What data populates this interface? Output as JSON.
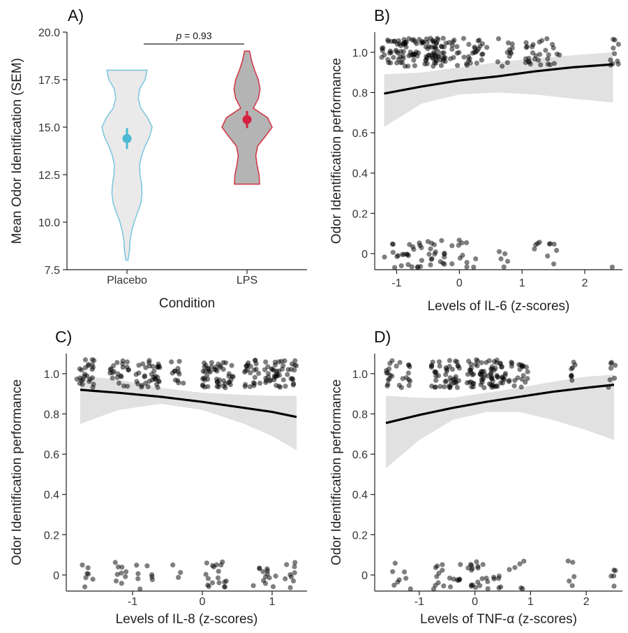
{
  "chart_data": [
    {
      "panel": "A)",
      "type": "violin",
      "xlabel": "Condition",
      "ylabel": "Mean Odor Identification (SEM)",
      "categories": [
        "Placebo",
        "LPS"
      ],
      "ylim": [
        7.5,
        20.0
      ],
      "yticks": [
        "7.5",
        "10.0",
        "12.5",
        "15.0",
        "17.5",
        "20.0"
      ],
      "yticks_values": [
        7.5,
        10.0,
        12.5,
        15.0,
        17.5,
        20.0
      ],
      "violins": [
        {
          "category": "Placebo",
          "fill": "#eaeaea",
          "stroke": "#7ec8e0",
          "profile": [
            [
              8.0,
              0.04
            ],
            [
              8.5,
              0.1
            ],
            [
              9.0,
              0.12
            ],
            [
              9.5,
              0.18
            ],
            [
              10.0,
              0.28
            ],
            [
              10.5,
              0.42
            ],
            [
              11.0,
              0.55
            ],
            [
              11.5,
              0.6
            ],
            [
              12.0,
              0.58
            ],
            [
              12.5,
              0.52
            ],
            [
              13.0,
              0.5
            ],
            [
              13.5,
              0.58
            ],
            [
              14.0,
              0.72
            ],
            [
              14.5,
              0.9
            ],
            [
              15.0,
              1.0
            ],
            [
              15.5,
              0.82
            ],
            [
              16.0,
              0.55
            ],
            [
              16.5,
              0.45
            ],
            [
              17.0,
              0.5
            ],
            [
              17.5,
              0.72
            ],
            [
              18.0,
              0.8
            ]
          ],
          "mean": 14.4,
          "sem_low": 13.85,
          "sem_high": 14.95,
          "point_color": "#4bbad2"
        },
        {
          "category": "LPS",
          "fill": "#b4b4b4",
          "stroke": "#d23a4a",
          "profile": [
            [
              12.0,
              0.5
            ],
            [
              12.5,
              0.48
            ],
            [
              13.0,
              0.4
            ],
            [
              13.5,
              0.35
            ],
            [
              14.0,
              0.42
            ],
            [
              14.5,
              0.72
            ],
            [
              15.0,
              1.0
            ],
            [
              15.5,
              0.82
            ],
            [
              16.0,
              0.25
            ],
            [
              16.5,
              0.45
            ],
            [
              17.0,
              0.52
            ],
            [
              17.5,
              0.45
            ],
            [
              18.0,
              0.3
            ],
            [
              18.5,
              0.18
            ],
            [
              19.0,
              0.1
            ]
          ],
          "mean": 15.4,
          "sem_low": 14.95,
          "sem_high": 15.85,
          "point_color": "#d42040"
        }
      ],
      "annotation": {
        "p_italic": "p",
        "text": " = 0.93",
        "y": 20.0
      }
    },
    {
      "panel": "B)",
      "type": "scatter",
      "xlabel": "Levels of IL-6 (z-scores)",
      "ylabel": "Odor Identification performance",
      "xlim": [
        -1.35,
        2.6
      ],
      "ylim": [
        -0.08,
        1.1
      ],
      "xticks": [
        "-1",
        "0",
        "1",
        "2"
      ],
      "xticks_values": [
        -1,
        0,
        1,
        2
      ],
      "yticks": [
        "0",
        "0.2",
        "0.4",
        "0.6",
        "0.8",
        "1.0"
      ],
      "yticks_values": [
        0,
        0.2,
        0.4,
        0.6,
        0.8,
        1.0
      ],
      "fit_line": {
        "x": [
          -1.2,
          -0.6,
          0.0,
          0.6,
          1.2,
          1.8,
          2.45
        ],
        "y": [
          0.795,
          0.83,
          0.86,
          0.88,
          0.905,
          0.925,
          0.94
        ]
      },
      "ci_band": {
        "x": [
          -1.2,
          -0.6,
          0.0,
          0.6,
          1.2,
          1.8,
          2.45
        ],
        "lower": [
          0.63,
          0.745,
          0.79,
          0.8,
          0.79,
          0.77,
          0.75
        ],
        "upper": [
          0.89,
          0.9,
          0.925,
          0.95,
          0.97,
          0.985,
          1.0
        ]
      },
      "points": {
        "clusters": [
          {
            "x_min": -1.25,
            "x_max": 0.0,
            "y_center": 1.0,
            "n": 130
          },
          {
            "x_min": 0.05,
            "x_max": 0.45,
            "y_center": 1.0,
            "n": 25
          },
          {
            "x_min": 0.6,
            "x_max": 0.85,
            "y_center": 1.0,
            "n": 12
          },
          {
            "x_min": 1.05,
            "x_max": 1.6,
            "y_center": 1.0,
            "n": 30
          },
          {
            "x_min": 2.4,
            "x_max": 2.55,
            "y_center": 1.0,
            "n": 10
          },
          {
            "x_min": -1.2,
            "x_max": -0.2,
            "y_center": 0.0,
            "n": 42
          },
          {
            "x_min": -0.15,
            "x_max": 0.3,
            "y_center": 0.0,
            "n": 12
          },
          {
            "x_min": 0.6,
            "x_max": 0.8,
            "y_center": 0.0,
            "n": 5
          },
          {
            "x_min": 1.15,
            "x_max": 1.6,
            "y_center": 0.0,
            "n": 10
          },
          {
            "x_min": 2.4,
            "x_max": 2.45,
            "y_center": 0.0,
            "n": 1
          }
        ],
        "color": "#000000"
      }
    },
    {
      "panel": "C)",
      "type": "scatter",
      "xlabel": "Levels of IL-8 (z-scores)",
      "ylabel": "Odor Identification performance",
      "xlim": [
        -1.95,
        1.5
      ],
      "ylim": [
        -0.08,
        1.1
      ],
      "xticks": [
        "-1",
        "0",
        "1"
      ],
      "xticks_values": [
        -1,
        0,
        1
      ],
      "yticks": [
        "0",
        "0.2",
        "0.4",
        "0.6",
        "0.8",
        "1.0"
      ],
      "yticks_values": [
        0,
        0.2,
        0.4,
        0.6,
        0.8,
        1.0
      ],
      "fit_line": {
        "x": [
          -1.75,
          -1.2,
          -0.6,
          0.0,
          0.6,
          1.0,
          1.35
        ],
        "y": [
          0.92,
          0.905,
          0.885,
          0.86,
          0.83,
          0.81,
          0.785
        ]
      },
      "ci_band": {
        "x": [
          -1.75,
          -1.2,
          -0.6,
          0.0,
          0.6,
          1.0,
          1.35
        ],
        "lower": [
          0.75,
          0.82,
          0.85,
          0.82,
          0.75,
          0.69,
          0.62
        ],
        "upper": [
          0.99,
          0.97,
          0.93,
          0.905,
          0.895,
          0.89,
          0.89
        ]
      },
      "points": {
        "clusters": [
          {
            "x_min": -1.8,
            "x_max": -1.55,
            "y_center": 1.0,
            "n": 25
          },
          {
            "x_min": -1.35,
            "x_max": -1.05,
            "y_center": 1.0,
            "n": 22
          },
          {
            "x_min": -0.95,
            "x_max": -0.6,
            "y_center": 1.0,
            "n": 35
          },
          {
            "x_min": -0.45,
            "x_max": -0.25,
            "y_center": 1.0,
            "n": 12
          },
          {
            "x_min": 0.0,
            "x_max": 0.45,
            "y_center": 1.0,
            "n": 50
          },
          {
            "x_min": 0.6,
            "x_max": 1.35,
            "y_center": 1.0,
            "n": 70
          },
          {
            "x_min": -1.8,
            "x_max": -1.55,
            "y_center": 0.0,
            "n": 7
          },
          {
            "x_min": -1.3,
            "x_max": -1.05,
            "y_center": 0.0,
            "n": 9
          },
          {
            "x_min": -0.95,
            "x_max": -0.7,
            "y_center": 0.0,
            "n": 8
          },
          {
            "x_min": -0.45,
            "x_max": -0.3,
            "y_center": 0.0,
            "n": 3
          },
          {
            "x_min": 0.05,
            "x_max": 0.45,
            "y_center": 0.0,
            "n": 18
          },
          {
            "x_min": 0.6,
            "x_max": 1.35,
            "y_center": 0.0,
            "n": 22
          }
        ],
        "color": "#000000"
      }
    },
    {
      "panel": "D)",
      "type": "scatter",
      "xlabel": "Levels of TNF-α (z-scores)",
      "ylabel": "Odor Identification performance",
      "xlim": [
        -1.8,
        2.65
      ],
      "ylim": [
        -0.08,
        1.1
      ],
      "xticks": [
        "-1",
        "0",
        "1",
        "2"
      ],
      "xticks_values": [
        -1,
        0,
        1,
        2
      ],
      "yticks": [
        "0",
        "0.2",
        "0.4",
        "0.6",
        "0.8",
        "1.0"
      ],
      "yticks_values": [
        0,
        0.2,
        0.4,
        0.6,
        0.8,
        1.0
      ],
      "fit_line": {
        "x": [
          -1.6,
          -1.0,
          -0.4,
          0.2,
          0.8,
          1.4,
          2.0,
          2.5
        ],
        "y": [
          0.755,
          0.795,
          0.83,
          0.86,
          0.885,
          0.91,
          0.93,
          0.945
        ]
      },
      "ci_band": {
        "x": [
          -1.6,
          -1.0,
          -0.4,
          0.2,
          0.8,
          1.4,
          2.0,
          2.5
        ],
        "lower": [
          0.53,
          0.67,
          0.77,
          0.81,
          0.81,
          0.77,
          0.72,
          0.67
        ],
        "upper": [
          0.89,
          0.88,
          0.88,
          0.905,
          0.93,
          0.96,
          0.985,
          0.995
        ]
      },
      "points": {
        "clusters": [
          {
            "x_min": -1.6,
            "x_max": -1.15,
            "y_center": 1.0,
            "n": 25
          },
          {
            "x_min": -0.8,
            "x_max": -0.25,
            "y_center": 1.0,
            "n": 45
          },
          {
            "x_min": -0.15,
            "x_max": 0.5,
            "y_center": 1.0,
            "n": 70
          },
          {
            "x_min": 0.5,
            "x_max": 0.95,
            "y_center": 1.0,
            "n": 25
          },
          {
            "x_min": 1.65,
            "x_max": 1.8,
            "y_center": 1.0,
            "n": 8
          },
          {
            "x_min": 2.4,
            "x_max": 2.55,
            "y_center": 1.0,
            "n": 7
          },
          {
            "x_min": -1.6,
            "x_max": -1.15,
            "y_center": 0.0,
            "n": 8
          },
          {
            "x_min": -0.8,
            "x_max": -0.25,
            "y_center": 0.0,
            "n": 18
          },
          {
            "x_min": -0.15,
            "x_max": 0.5,
            "y_center": 0.0,
            "n": 25
          },
          {
            "x_min": 0.55,
            "x_max": 0.95,
            "y_center": 0.0,
            "n": 6
          },
          {
            "x_min": 1.65,
            "x_max": 1.8,
            "y_center": 0.0,
            "n": 5
          },
          {
            "x_min": 2.4,
            "x_max": 2.55,
            "y_center": 0.0,
            "n": 5
          }
        ],
        "color": "#000000"
      }
    }
  ]
}
